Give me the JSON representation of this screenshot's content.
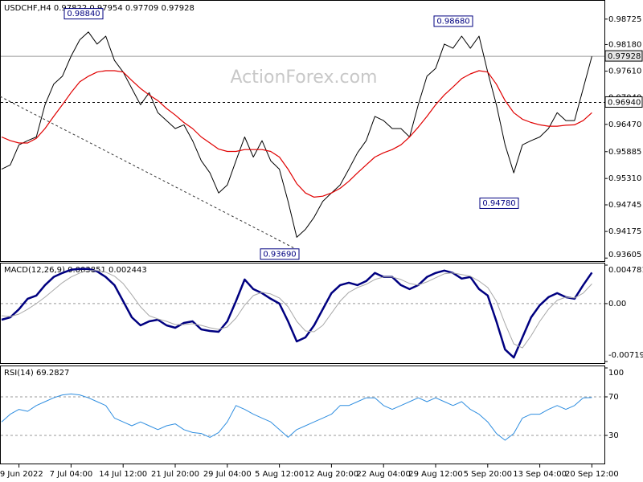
{
  "chart_data": [
    {
      "type": "line",
      "title": "USDCHF,H4  0.97822 0.97954 0.97709 0.97928",
      "watermark": "ActionForex.com",
      "categories": [
        null,
        null,
        "29 Jun 2022",
        null,
        null,
        null,
        null,
        null,
        "7 Jul 04:00",
        null,
        null,
        null,
        null,
        null,
        "14 Jul 12:00",
        null,
        null,
        null,
        null,
        null,
        "21 Jul 20:00",
        null,
        null,
        null,
        null,
        null,
        "29 Jul 04:00",
        null,
        null,
        null,
        null,
        null,
        "5 Aug 12:00",
        null,
        null,
        null,
        null,
        null,
        "12 Aug 20:00",
        null,
        null,
        null,
        null,
        null,
        "22 Aug 04:00",
        null,
        null,
        null,
        null,
        null,
        "29 Aug 12:00",
        null,
        null,
        null,
        null,
        null,
        "5 Sep 20:00",
        null,
        null,
        null,
        null,
        null,
        "13 Sep 04:00",
        null,
        null,
        null,
        null,
        null,
        "20 Sep 12:00"
      ],
      "series": [
        {
          "color": "#000000",
          "width": 1,
          "values": [
            0.9551,
            0.956,
            0.9603,
            0.9612,
            0.962,
            0.9689,
            0.9733,
            0.975,
            0.9793,
            0.9828,
            0.9845,
            0.9819,
            0.9836,
            0.9784,
            0.9759,
            0.9724,
            0.9689,
            0.9715,
            0.9672,
            0.9655,
            0.9638,
            0.9646,
            0.9612,
            0.9569,
            0.9543,
            0.95,
            0.9517,
            0.9569,
            0.962,
            0.9577,
            0.9612,
            0.9569,
            0.9551,
            0.9482,
            0.9405,
            0.9422,
            0.9448,
            0.9482,
            0.95,
            0.9517,
            0.9551,
            0.9586,
            0.9612,
            0.9664,
            0.9655,
            0.9638,
            0.9638,
            0.962,
            0.9689,
            0.975,
            0.9767,
            0.9819,
            0.981,
            0.9836,
            0.981,
            0.9836,
            0.9759,
            0.9689,
            0.9603,
            0.9543,
            0.9603,
            0.9612,
            0.962,
            0.9638,
            0.9672,
            0.9655,
            0.9655,
            0.9724,
            0.97928
          ]
        },
        {
          "color": "#e00000",
          "width": 1.2,
          "values": [
            0.962,
            0.9612,
            0.9607,
            0.9607,
            0.9617,
            0.9638,
            0.9664,
            0.9689,
            0.9715,
            0.9738,
            0.975,
            0.9759,
            0.9762,
            0.9762,
            0.9759,
            0.9741,
            0.9724,
            0.971,
            0.9698,
            0.9681,
            0.9667,
            0.9651,
            0.9638,
            0.962,
            0.9607,
            0.9594,
            0.9589,
            0.9589,
            0.9593,
            0.9593,
            0.9593,
            0.9589,
            0.9577,
            0.9551,
            0.952,
            0.95,
            0.9491,
            0.9493,
            0.95,
            0.951,
            0.9525,
            0.9543,
            0.956,
            0.9577,
            0.9586,
            0.9593,
            0.9603,
            0.962,
            0.9641,
            0.9664,
            0.9689,
            0.971,
            0.9727,
            0.9745,
            0.9755,
            0.9762,
            0.9759,
            0.9733,
            0.9698,
            0.9672,
            0.9658,
            0.9651,
            0.9646,
            0.9643,
            0.9643,
            0.9645,
            0.9646,
            0.9655,
            0.9672
          ]
        }
      ],
      "ylim": [
        0.9354,
        0.991
      ],
      "yticks": [
        {
          "value": 0.98725,
          "label": "0.98725"
        },
        {
          "value": 0.9818,
          "label": "0.98180"
        },
        {
          "value": 0.9761,
          "label": "0.97610"
        },
        {
          "value": 0.9704,
          "label": "0.97040"
        },
        {
          "value": 0.9647,
          "label": "0.96470"
        },
        {
          "value": 0.95885,
          "label": "0.95885"
        },
        {
          "value": 0.9531,
          "label": "0.95310"
        },
        {
          "value": 0.94745,
          "label": "0.94745"
        },
        {
          "value": 0.94175,
          "label": "0.94175"
        },
        {
          "value": 0.93605,
          "label": "0.93605"
        }
      ],
      "horizontal_lines": [
        {
          "value": 0.97928,
          "label": "0.97928",
          "style": "solid"
        },
        {
          "value": 0.9694,
          "label": "0.96940",
          "style": "dashed"
        }
      ],
      "annotations": [
        {
          "value": 0.9884,
          "label": "0.98840"
        },
        {
          "value": 0.9369,
          "label": "0.93690"
        },
        {
          "value": 0.9868,
          "label": "0.98680"
        },
        {
          "value": 0.9478,
          "label": "0.94780"
        }
      ]
    },
    {
      "type": "line",
      "title": "MACD(12,26,9) 0.003851 0.002443",
      "series": [
        {
          "color": "#000080",
          "width": 2.5,
          "values": [
            -0.002,
            -0.0017,
            -0.0007,
            0.0006,
            0.001,
            0.0023,
            0.0033,
            0.0038,
            0.0042,
            0.0043,
            0.0043,
            0.004,
            0.0033,
            0.0023,
            0.0003,
            -0.0017,
            -0.0027,
            -0.0022,
            -0.002,
            -0.0027,
            -0.003,
            -0.0024,
            -0.0022,
            -0.0032,
            -0.0034,
            -0.0035,
            -0.0022,
            0.0003,
            0.003,
            0.0018,
            0.0013,
            0.0006,
            0,
            -0.0022,
            -0.0047,
            -0.0042,
            -0.0027,
            -0.0007,
            0.0013,
            0.0023,
            0.0026,
            0.0023,
            0.0028,
            0.0038,
            0.0033,
            0.0033,
            0.0023,
            0.0018,
            0.0023,
            0.0033,
            0.0038,
            0.0041,
            0.0038,
            0.0031,
            0.0033,
            0.0018,
            0.001,
            -0.0022,
            -0.0057,
            -0.0067,
            -0.0042,
            -0.0017,
            -0.0002,
            0.0008,
            0.0013,
            0.0008,
            0.0006,
            0.0023,
            0.003851
          ]
        },
        {
          "color": "#a8a8a8",
          "width": 1,
          "values": [
            -0.0015,
            -0.0016,
            -0.0013,
            -0.0007,
            0,
            0.0008,
            0.0017,
            0.0026,
            0.0033,
            0.0038,
            0.0041,
            0.0041,
            0.0039,
            0.0034,
            0.0025,
            0.0011,
            -0.0004,
            -0.0015,
            -0.0019,
            -0.0022,
            -0.0026,
            -0.0026,
            -0.0025,
            -0.0027,
            -0.003,
            -0.0032,
            -0.0029,
            -0.0018,
            -0.0002,
            0.001,
            0.0014,
            0.0012,
            0.0007,
            -0.0004,
            -0.0022,
            -0.0034,
            -0.0035,
            -0.0027,
            -0.0012,
            0.0003,
            0.0014,
            0.002,
            0.0024,
            0.003,
            0.0033,
            0.0033,
            0.003,
            0.0025,
            0.0023,
            0.0027,
            0.0032,
            0.0037,
            0.0038,
            0.0036,
            0.0034,
            0.0028,
            0.002,
            0.0003,
            -0.0025,
            -0.005,
            -0.0055,
            -0.004,
            -0.0022,
            -0.0007,
            0.0004,
            0.0008,
            0.0007,
            0.0013,
            0.002443
          ]
        }
      ],
      "ylim": [
        -0.007191,
        0.004781
      ],
      "yticks": [
        0.004781,
        {
          "value": 0,
          "label": "0.00"
        },
        -0.007191
      ],
      "level_lines": [
        0
      ]
    },
    {
      "type": "line",
      "title": "RSI(14) 69.2827",
      "series": [
        {
          "color": "#2f8ee0",
          "width": 1,
          "values": [
            44,
            52,
            57,
            55,
            61,
            65,
            69,
            72,
            73,
            72,
            69,
            65,
            61,
            48,
            44,
            40,
            44,
            40,
            36,
            40,
            42,
            36,
            33,
            32,
            28,
            33,
            44,
            61,
            57,
            52,
            48,
            44,
            36,
            28,
            36,
            40,
            44,
            48,
            52,
            61,
            61,
            65,
            69,
            69,
            61,
            57,
            61,
            65,
            69,
            65,
            69,
            65,
            61,
            65,
            57,
            52,
            44,
            32,
            25,
            32,
            48,
            52,
            52,
            57,
            61,
            57,
            61,
            69,
            69.2827
          ]
        }
      ],
      "ylim": [
        0,
        100
      ],
      "yticks": [
        100,
        70,
        30
      ],
      "level_lines": [
        70,
        30
      ]
    }
  ]
}
